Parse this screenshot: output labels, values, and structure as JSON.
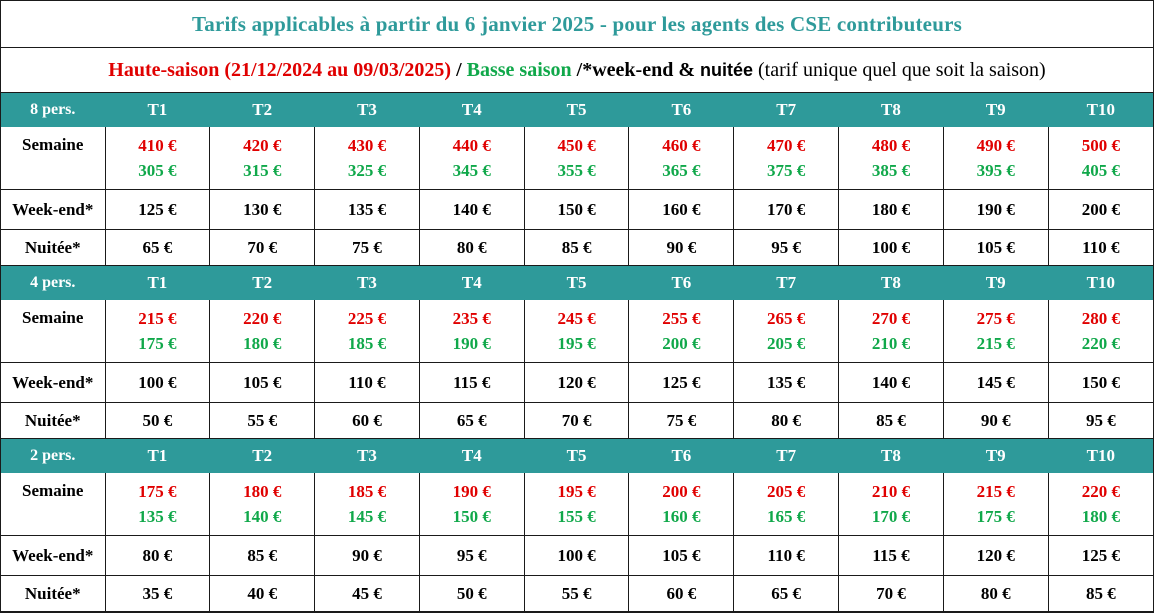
{
  "title": "Tarifs applicables à partir du 6 janvier 2025 - pour les agents des CSE contributeurs",
  "legend": {
    "high": "Haute-saison (21/12/2024 au 09/03/2025)",
    "sep": " / ",
    "low": "Basse saison",
    "tail_bold": " /*week-end & ",
    "tail_bold2": "nuitée",
    "tail_plain": " (tarif unique quel que soit la saison)"
  },
  "colors": {
    "teal": "#2e9a9a",
    "high": "#e00000",
    "low": "#10a84a"
  },
  "columns": [
    "T1",
    "T2",
    "T3",
    "T4",
    "T5",
    "T6",
    "T7",
    "T8",
    "T9",
    "T10"
  ],
  "row_labels": {
    "semaine": "Semaine",
    "weekend": "Week-end*",
    "nuitee": "Nuitée*"
  },
  "groups": [
    {
      "label": "8 pers.",
      "semaine_high": [
        "410 €",
        "420 €",
        "430 €",
        "440 €",
        "450 €",
        "460 €",
        "470 €",
        "480 €",
        "490 €",
        "500 €"
      ],
      "semaine_low": [
        "305 €",
        "315 €",
        "325 €",
        "345 €",
        "355 €",
        "365 €",
        "375 €",
        "385 €",
        "395 €",
        "405 €"
      ],
      "weekend": [
        "125 €",
        "130 €",
        "135 €",
        "140 €",
        "150 €",
        "160 €",
        "170 €",
        "180 €",
        "190 €",
        "200 €"
      ],
      "nuitee": [
        "65 €",
        "70 €",
        "75 €",
        "80 €",
        "85 €",
        "90 €",
        "95 €",
        "100 €",
        "105 €",
        "110 €"
      ]
    },
    {
      "label": "4 pers.",
      "semaine_high": [
        "215 €",
        "220 €",
        "225 €",
        "235 €",
        "245 €",
        "255 €",
        "265 €",
        "270 €",
        "275 €",
        "280 €"
      ],
      "semaine_low": [
        "175 €",
        "180 €",
        "185 €",
        "190 €",
        "195 €",
        "200 €",
        "205 €",
        "210 €",
        "215 €",
        "220 €"
      ],
      "weekend": [
        "100 €",
        "105 €",
        "110 €",
        "115 €",
        "120 €",
        "125 €",
        "135 €",
        "140 €",
        "145 €",
        "150 €"
      ],
      "nuitee": [
        "50 €",
        "55 €",
        "60 €",
        "65 €",
        "70 €",
        "75 €",
        "80 €",
        "85 €",
        "90 €",
        "95 €"
      ]
    },
    {
      "label": "2 pers.",
      "semaine_high": [
        "175 €",
        "180 €",
        "185 €",
        "190 €",
        "195 €",
        "200 €",
        "205 €",
        "210 €",
        "215 €",
        "220 €"
      ],
      "semaine_low": [
        "135 €",
        "140 €",
        "145 €",
        "150 €",
        "155 €",
        "160 €",
        "165 €",
        "170 €",
        "175 €",
        "180 €"
      ],
      "weekend": [
        "80 €",
        "85 €",
        "90 €",
        "95 €",
        "100 €",
        "105 €",
        "110 €",
        "115 €",
        "120 €",
        "125 €"
      ],
      "nuitee": [
        "35 €",
        "40 €",
        "45 €",
        "50 €",
        "55 €",
        "60 €",
        "65 €",
        "70 €",
        "80 €",
        "85 €"
      ]
    }
  ]
}
